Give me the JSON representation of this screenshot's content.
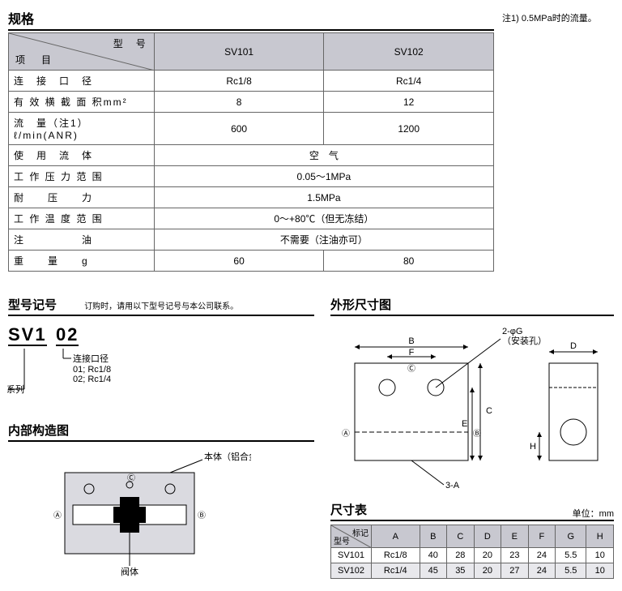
{
  "spec": {
    "title": "规格",
    "header_diag_top": "型　号",
    "header_diag_bot": "项　目",
    "model_cols": [
      "SV101",
      "SV102"
    ],
    "rows": [
      {
        "label": "连　接　口　径",
        "vals": [
          "Rc1/8",
          "Rc1/4"
        ]
      },
      {
        "label": "有 效 横 截 面 积mm²",
        "vals": [
          "8",
          "12"
        ]
      },
      {
        "label": "流　量（注1）　ℓ/min(ANR)",
        "vals": [
          "600",
          "1200"
        ]
      },
      {
        "label": "使　用　流　体",
        "merged": "空　气"
      },
      {
        "label": "工 作 压 力 范 围",
        "merged": "0.05～1MPa"
      },
      {
        "label": "耐　　压　　力",
        "merged": "1.5MPa"
      },
      {
        "label": "工 作 温 度 范 围",
        "merged": "0～+80℃（但无冻结）"
      },
      {
        "label": "注　　　　　油",
        "merged": "不需要（注油亦可）"
      },
      {
        "label": "重　　量　　g",
        "vals": [
          "60",
          "80"
        ]
      }
    ],
    "note": "注1) 0.5MPa时的流量。"
  },
  "model_num": {
    "title": "型号记号",
    "subnote": "订购时，请用以下型号记号与本公司联系。",
    "code_series": "SV1",
    "code_size": "02",
    "series_label": "系列",
    "size_title": "连接口径",
    "size_opt1": "01; Rc1/8",
    "size_opt2": "02; Rc1/4"
  },
  "internal": {
    "title": "内部构造图",
    "label_body": "本体（铝合金）",
    "label_valve": "阀体"
  },
  "outline": {
    "title": "外形尺寸图",
    "label_hole": "2-φG\n（安装孔）",
    "label_3A": "3-A"
  },
  "dims": {
    "title": "尺寸表",
    "unit": "单位：mm",
    "diag_top": "标记",
    "diag_bot": "型号",
    "cols": [
      "A",
      "B",
      "C",
      "D",
      "E",
      "F",
      "G",
      "H"
    ],
    "rows": [
      {
        "model": "SV101",
        "vals": [
          "Rc1/8",
          "40",
          "28",
          "20",
          "23",
          "24",
          "5.5",
          "10"
        ]
      },
      {
        "model": "SV102",
        "vals": [
          "Rc1/4",
          "45",
          "35",
          "20",
          "27",
          "24",
          "5.5",
          "10"
        ],
        "alt": true
      }
    ]
  },
  "colors": {
    "header_bg": "#c8c8d0",
    "border": "#666",
    "diagram_fill": "#dadae0"
  }
}
